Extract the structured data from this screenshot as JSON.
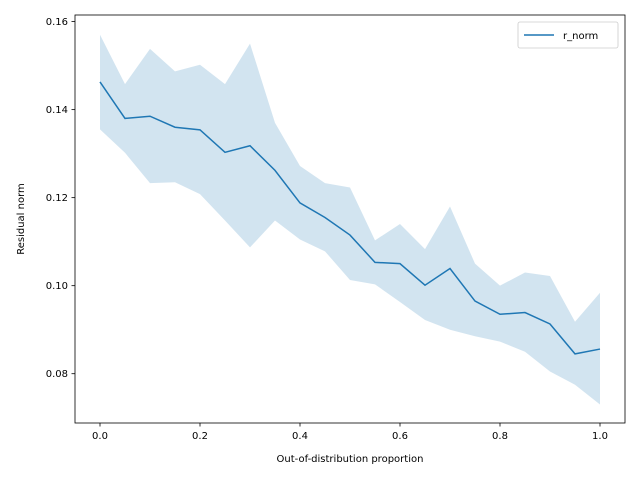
{
  "chart_data": {
    "type": "line",
    "xlabel": "Out-of-distribution proportion",
    "ylabel": "Residual norm",
    "xlim": [
      -0.05,
      1.05
    ],
    "ylim": [
      0.0688,
      0.1615
    ],
    "xticks": [
      0.0,
      0.2,
      0.4,
      0.6,
      0.8,
      1.0
    ],
    "xtick_labels": [
      "0.0",
      "0.2",
      "0.4",
      "0.6",
      "0.8",
      "1.0"
    ],
    "yticks": [
      0.08,
      0.1,
      0.12,
      0.14,
      0.16
    ],
    "ytick_labels": [
      "0.08",
      "0.10",
      "0.12",
      "0.14",
      "0.16"
    ],
    "grid": false,
    "legend": {
      "position": "upper right",
      "entries": [
        "r_norm"
      ]
    },
    "x": [
      0.0,
      0.05,
      0.1,
      0.15,
      0.2,
      0.25,
      0.3,
      0.35,
      0.4,
      0.45,
      0.5,
      0.55,
      0.6,
      0.65,
      0.7,
      0.75,
      0.8,
      0.85,
      0.9,
      0.95,
      1.0
    ],
    "series": [
      {
        "name": "r_norm",
        "color": "#1f77b4",
        "band_color": "#1f77b4",
        "values": [
          0.1463,
          0.138,
          0.1385,
          0.136,
          0.1354,
          0.1303,
          0.1318,
          0.1262,
          0.1188,
          0.1155,
          0.1115,
          0.1053,
          0.105,
          0.1001,
          0.1039,
          0.0965,
          0.0935,
          0.0939,
          0.0913,
          0.0845,
          0.0856
        ],
        "upper": [
          0.157,
          0.1458,
          0.1538,
          0.1487,
          0.1502,
          0.1458,
          0.155,
          0.137,
          0.1272,
          0.1233,
          0.1223,
          0.1103,
          0.114,
          0.1083,
          0.118,
          0.105,
          0.1,
          0.103,
          0.1022,
          0.0918,
          0.0984
        ],
        "lower": [
          0.1355,
          0.1302,
          0.1233,
          0.1235,
          0.1208,
          0.1148,
          0.1087,
          0.1148,
          0.1105,
          0.1078,
          0.1013,
          0.1003,
          0.0963,
          0.0922,
          0.09,
          0.0885,
          0.0873,
          0.085,
          0.0805,
          0.0775,
          0.073
        ]
      }
    ]
  }
}
